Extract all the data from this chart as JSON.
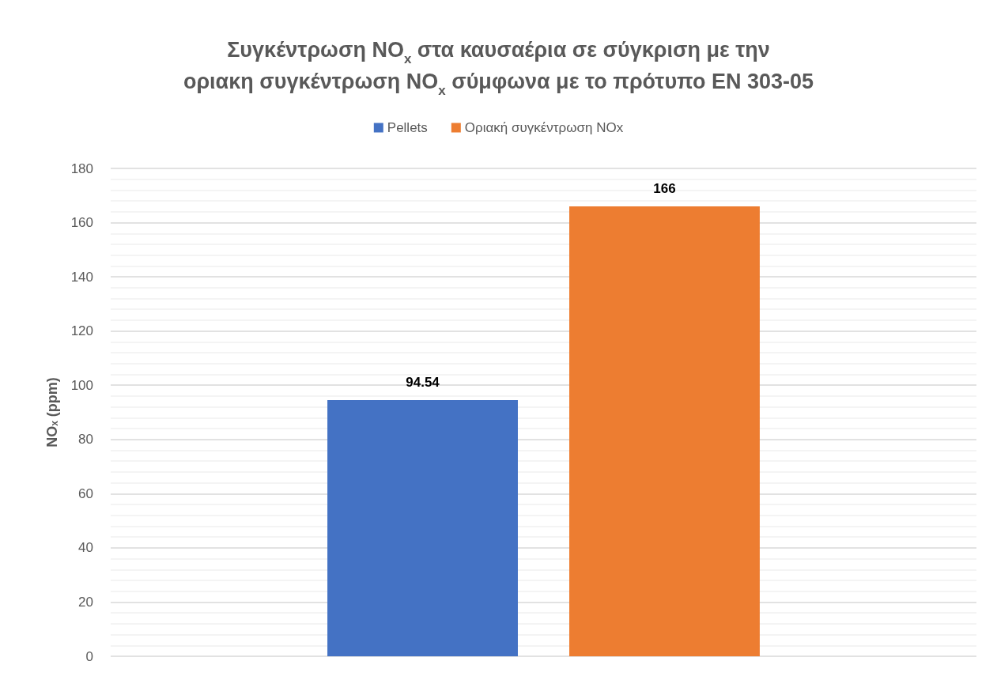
{
  "chart_data": {
    "type": "bar",
    "title": "Συγκέντρωση NO$_{x}$ στα καυσαέρια σε σύγκριση με την οριακη συγκέντρωση NO$_{x}$ σύμφωνα με το πρότυπο EN 303-05",
    "ylabel": "NO$_{x}$ (ppm)",
    "categories": [
      null
    ],
    "series": [
      {
        "name": "Pellets",
        "color": "#4472c4",
        "values": [
          94.54
        ]
      },
      {
        "name": "Οριακή συγκέντρωση NOx",
        "color": "#ed7d31",
        "values": [
          166
        ]
      }
    ],
    "ylim": [
      0,
      180
    ],
    "yticks": [
      0,
      20,
      40,
      60,
      80,
      100,
      120,
      140,
      160,
      180
    ],
    "grid": true,
    "legend": "top",
    "data_labels": true
  }
}
